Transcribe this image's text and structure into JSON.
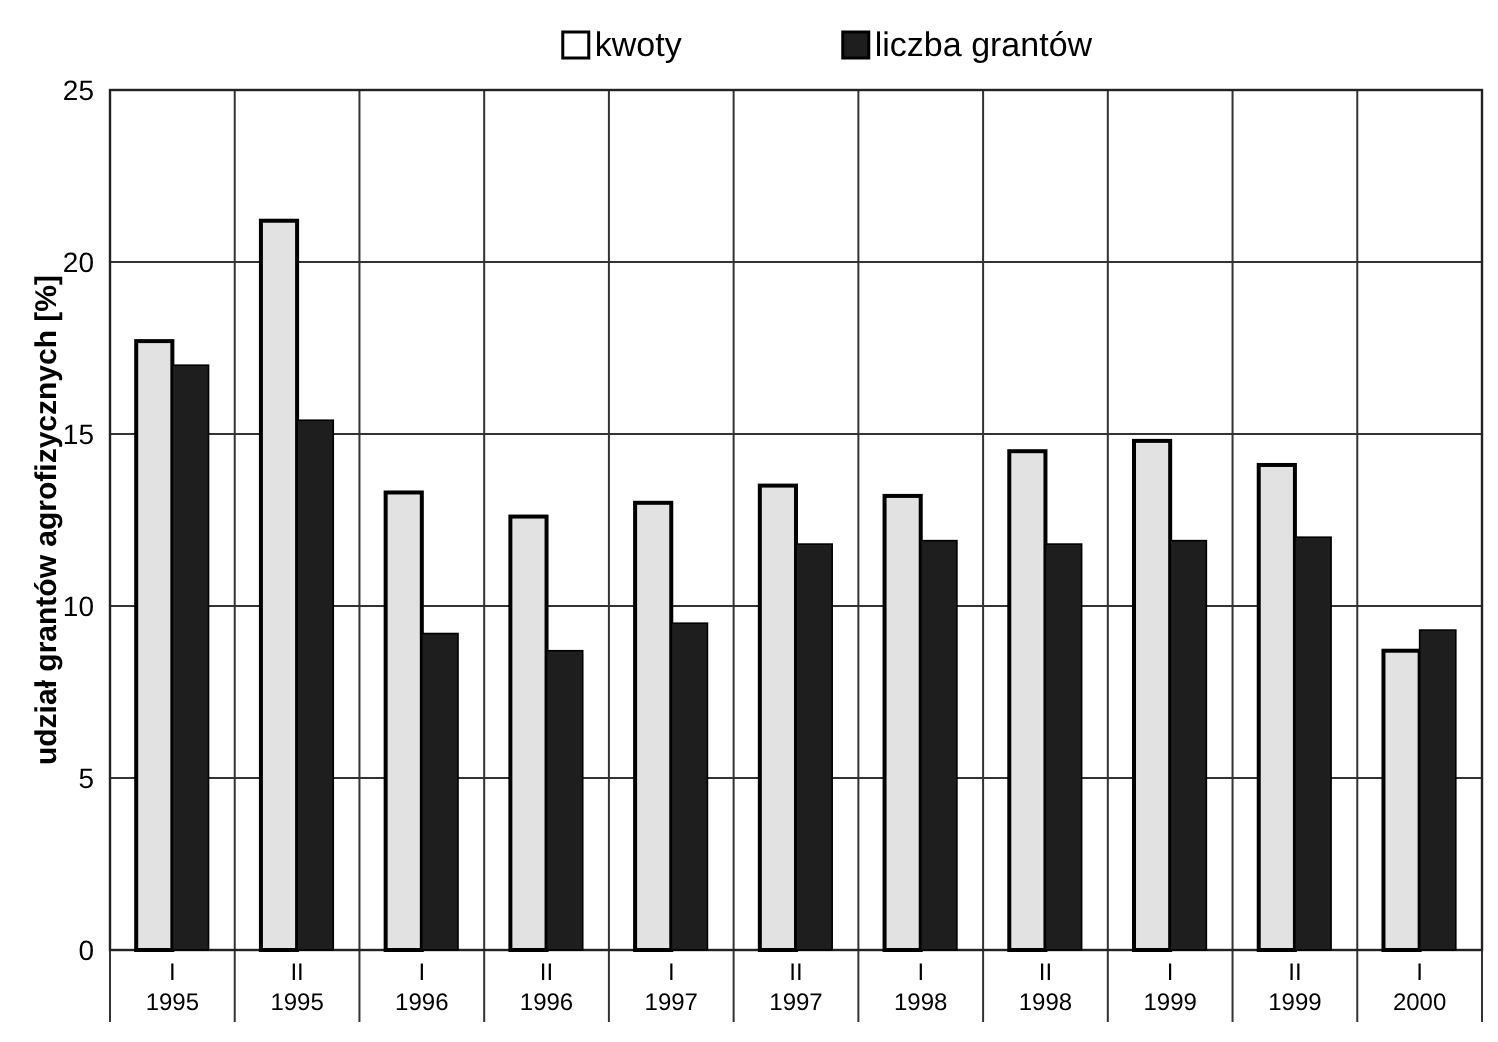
{
  "chart_data": {
    "type": "bar",
    "ylabel": "udział  grantów agrofizycznych [%]",
    "categories": [
      "I\n1995",
      "II\n1995",
      "I\n1996",
      "II\n1996",
      "I\n1997",
      "II\n1997",
      "I\n1998",
      "II\n1998",
      "I\n1999",
      "II\n1999",
      "I\n2000"
    ],
    "series": [
      {
        "name": "kwoty",
        "color": "#e2e2e2",
        "values": [
          17.7,
          21.2,
          13.3,
          12.6,
          13.0,
          13.5,
          13.2,
          14.5,
          14.8,
          14.1,
          8.7
        ]
      },
      {
        "name": "liczba grantów",
        "color": "#1e1e1e",
        "values": [
          17.0,
          15.4,
          9.2,
          8.7,
          9.5,
          11.8,
          11.9,
          11.8,
          11.9,
          12.0,
          9.3
        ]
      }
    ],
    "ylim": [
      0,
      25
    ],
    "yticks": [
      0,
      5,
      10,
      15,
      20,
      25
    ],
    "grid": true,
    "legend": "top"
  }
}
